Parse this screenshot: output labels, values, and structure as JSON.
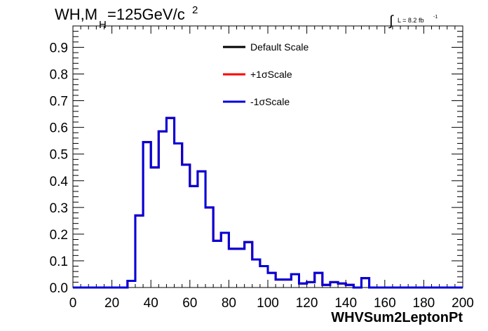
{
  "header": {
    "title_prefix": "WH,M",
    "title_sub": "H",
    "title_main": "=125GeV/c",
    "title_sup": "2",
    "lumi_integral": "∫",
    "lumi_text": "L = 8.2 fb",
    "lumi_sup": "-1"
  },
  "chart_data": {
    "type": "line",
    "xlabel": "WHVSum2LeptonPt",
    "ylabel": "",
    "xlim": [
      0,
      200
    ],
    "ylim": [
      0,
      0.98
    ],
    "xticks": [
      "0",
      "20",
      "40",
      "60",
      "80",
      "100",
      "120",
      "140",
      "160",
      "180",
      "200"
    ],
    "yticks": [
      "0.0",
      "0.1",
      "0.2",
      "0.3",
      "0.4",
      "0.5",
      "0.6",
      "0.7",
      "0.8",
      "0.9"
    ],
    "bin_edges": [
      0,
      4,
      8,
      12,
      16,
      20,
      24,
      28,
      32,
      36,
      40,
      44,
      48,
      52,
      56,
      60,
      64,
      68,
      72,
      76,
      80,
      84,
      88,
      92,
      96,
      100,
      104,
      108,
      112,
      116,
      120,
      124,
      128,
      132,
      136,
      140,
      144,
      148,
      152,
      156,
      160,
      164,
      168,
      172,
      176,
      180,
      184,
      188,
      192,
      196,
      200
    ],
    "series": [
      {
        "name": "Default Scale",
        "color": "#000000",
        "values": [
          0,
          0,
          0,
          0,
          0,
          0,
          0,
          0.025,
          0.27,
          0.545,
          0.45,
          0.585,
          0.635,
          0.54,
          0.46,
          0.38,
          0.435,
          0.3,
          0.175,
          0.205,
          0.145,
          0.145,
          0.17,
          0.105,
          0.08,
          0.055,
          0.03,
          0.03,
          0.05,
          0.015,
          0.02,
          0.055,
          0.01,
          0.02,
          0.015,
          0.01,
          0,
          0.035,
          0,
          0,
          0,
          0,
          0,
          0,
          0,
          0,
          0,
          0,
          0,
          0
        ]
      },
      {
        "name": "+1σScale",
        "color": "#ff0000",
        "values": [
          0,
          0,
          0,
          0,
          0,
          0,
          0,
          0.025,
          0.27,
          0.545,
          0.45,
          0.585,
          0.635,
          0.54,
          0.46,
          0.38,
          0.435,
          0.3,
          0.175,
          0.205,
          0.145,
          0.145,
          0.17,
          0.105,
          0.08,
          0.055,
          0.03,
          0.03,
          0.05,
          0.015,
          0.02,
          0.055,
          0.01,
          0.02,
          0.015,
          0.01,
          0,
          0.035,
          0,
          0,
          0,
          0,
          0,
          0,
          0,
          0,
          0,
          0,
          0,
          0
        ]
      },
      {
        "name": "-1σScale",
        "color": "#0000dd",
        "values": [
          0,
          0,
          0,
          0,
          0,
          0,
          0,
          0.025,
          0.27,
          0.545,
          0.45,
          0.585,
          0.635,
          0.54,
          0.46,
          0.38,
          0.435,
          0.3,
          0.175,
          0.205,
          0.145,
          0.145,
          0.17,
          0.105,
          0.08,
          0.055,
          0.03,
          0.03,
          0.05,
          0.015,
          0.02,
          0.055,
          0.01,
          0.02,
          0.015,
          0.01,
          0,
          0.035,
          0,
          0,
          0,
          0,
          0,
          0,
          0,
          0,
          0,
          0,
          0,
          0
        ]
      }
    ],
    "legend": {
      "placement": "top-center",
      "entries": [
        "Default Scale",
        "+1σScale",
        "-1σScale"
      ]
    },
    "grid": false
  }
}
